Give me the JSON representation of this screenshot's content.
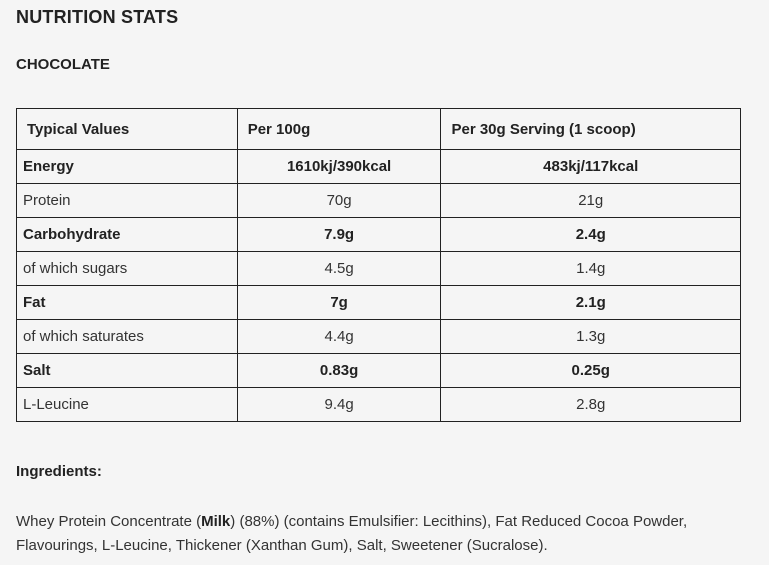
{
  "title": "NUTRITION STATS",
  "flavour": "CHOCOLATE",
  "table": {
    "headers": [
      "Typical Values",
      "Per 100g",
      "Per 30g Serving (1 scoop)"
    ],
    "rows": [
      {
        "name": "Energy",
        "per100": "1610kj/390kcal",
        "perServing": "483kj/117kcal",
        "bold": true
      },
      {
        "name": "Protein",
        "per100": "70g",
        "perServing": "21g",
        "bold": false
      },
      {
        "name": "Carbohydrate",
        "per100": "7.9g",
        "perServing": "2.4g",
        "bold": true
      },
      {
        "name": "of which sugars",
        "per100": "4.5g",
        "perServing": "1.4g",
        "bold": false
      },
      {
        "name": "Fat",
        "per100": "7g",
        "perServing": "2.1g",
        "bold": true
      },
      {
        "name": "of which saturates",
        "per100": "4.4g",
        "perServing": "1.3g",
        "bold": false
      },
      {
        "name": "Salt",
        "per100": "0.83g",
        "perServing": "0.25g",
        "bold": true
      },
      {
        "name": "L-Leucine",
        "per100": "9.4g",
        "perServing": "2.8g",
        "bold": false
      }
    ]
  },
  "ingredients": {
    "heading": "Ingredients:",
    "part1": "Whey Protein Concentrate (",
    "allergen": "Milk",
    "part2": ") (88%) (contains Emulsifier: Lecithins), Fat Reduced Cocoa Powder, Flavourings, L-Leucine, Thickener (Xanthan Gum), Salt, Sweetener (Sucralose)."
  }
}
